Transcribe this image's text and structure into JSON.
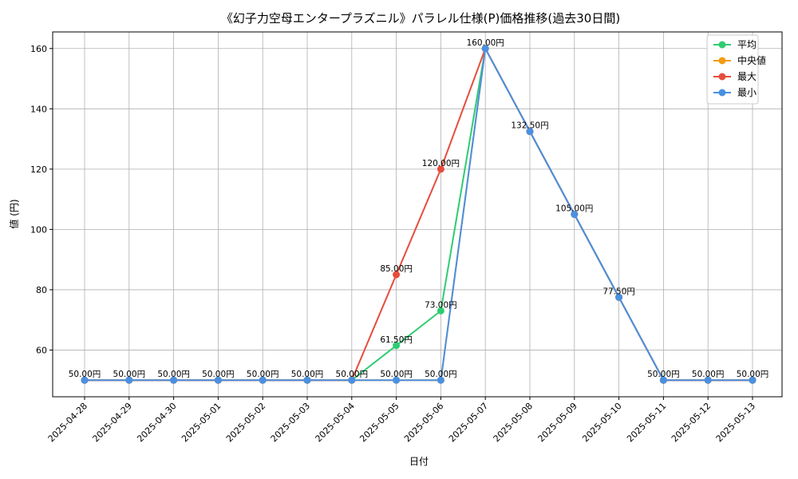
{
  "chart_data": {
    "type": "line",
    "title": "《幻子力空母エンタープラズニル》パラレル仕様(P)価格推移(過去30日間)",
    "xlabel": "日付",
    "ylabel": "値 (円)",
    "ylim": [
      44.5,
      165.5
    ],
    "yticks": [
      60,
      80,
      100,
      120,
      140,
      160
    ],
    "grid": true,
    "legend_position": "top-right",
    "categories": [
      "2025-04-28",
      "2025-04-29",
      "2025-04-30",
      "2025-05-01",
      "2025-05-02",
      "2025-05-03",
      "2025-05-04",
      "2025-05-05",
      "2025-05-06",
      "2025-05-07",
      "2025-05-08",
      "2025-05-09",
      "2025-05-10",
      "2025-05-11",
      "2025-05-12",
      "2025-05-13"
    ],
    "series": [
      {
        "name": "平均",
        "color": "#2ecc71",
        "values": [
          50,
          50,
          50,
          50,
          50,
          50,
          50,
          61.5,
          73,
          160,
          132.5,
          105,
          77.5,
          50,
          50,
          50
        ]
      },
      {
        "name": "中央値",
        "color": "#f39c12",
        "values": [
          50,
          50,
          50,
          50,
          50,
          50,
          50,
          50,
          50,
          160,
          132.5,
          105,
          77.5,
          50,
          50,
          50
        ]
      },
      {
        "name": "最大",
        "color": "#e74c3c",
        "values": [
          50,
          50,
          50,
          50,
          50,
          50,
          50,
          85,
          120,
          160,
          132.5,
          105,
          77.5,
          50,
          50,
          50
        ]
      },
      {
        "name": "最小",
        "color": "#4a90e2",
        "values": [
          50,
          50,
          50,
          50,
          50,
          50,
          50,
          50,
          50,
          160,
          132.5,
          105,
          77.5,
          50,
          50,
          50
        ]
      }
    ],
    "data_labels": [
      {
        "series": "平均",
        "index": 7,
        "text": "61.50円"
      },
      {
        "series": "平均",
        "index": 8,
        "text": "73.00円"
      },
      {
        "series": "最大",
        "index": 7,
        "text": "85.00円"
      },
      {
        "series": "最大",
        "index": 8,
        "text": "120.00円"
      },
      {
        "series": "最小",
        "index": 0,
        "text": "50.00円"
      },
      {
        "series": "最小",
        "index": 1,
        "text": "50.00円"
      },
      {
        "series": "最小",
        "index": 2,
        "text": "50.00円"
      },
      {
        "series": "最小",
        "index": 3,
        "text": "50.00円"
      },
      {
        "series": "最小",
        "index": 4,
        "text": "50.00円"
      },
      {
        "series": "最小",
        "index": 5,
        "text": "50.00円"
      },
      {
        "series": "最小",
        "index": 6,
        "text": "50.00円"
      },
      {
        "series": "最小",
        "index": 7,
        "text": "50.00円"
      },
      {
        "series": "最小",
        "index": 8,
        "text": "50.00円"
      },
      {
        "series": "最小",
        "index": 9,
        "text": "160.00円"
      },
      {
        "series": "最小",
        "index": 10,
        "text": "132.50円"
      },
      {
        "series": "最小",
        "index": 11,
        "text": "105.00円"
      },
      {
        "series": "最小",
        "index": 12,
        "text": "77.50円"
      },
      {
        "series": "最小",
        "index": 13,
        "text": "50.00円"
      },
      {
        "series": "最小",
        "index": 14,
        "text": "50.00円"
      },
      {
        "series": "最小",
        "index": 15,
        "text": "50.00円"
      }
    ]
  }
}
